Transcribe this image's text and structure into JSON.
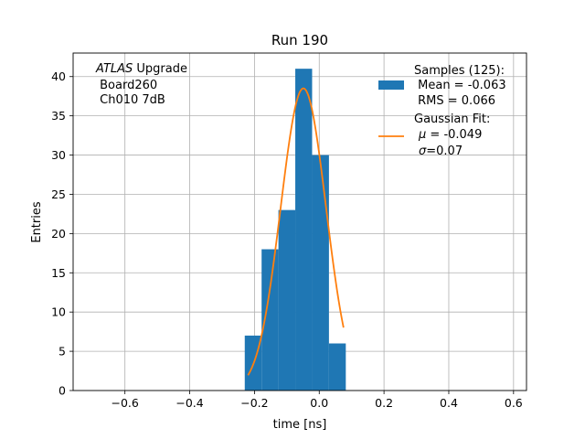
{
  "chart_data": {
    "type": "bar",
    "title": "Run 190",
    "xlabel": "time [ns]",
    "ylabel": "Entries",
    "xlim": [
      -0.76,
      0.64
    ],
    "ylim": [
      0,
      43
    ],
    "xticks": [
      -0.6,
      -0.4,
      -0.2,
      0.0,
      0.2,
      0.4,
      0.6
    ],
    "xtick_labels": [
      "−0.6",
      "−0.4",
      "−0.2",
      "0.0",
      "0.2",
      "0.4",
      "0.6"
    ],
    "yticks": [
      0,
      5,
      10,
      15,
      20,
      25,
      30,
      35,
      40
    ],
    "ytick_labels": [
      "0",
      "5",
      "10",
      "15",
      "20",
      "25",
      "30",
      "35",
      "40"
    ],
    "grid": true,
    "histogram": {
      "bin_edges": [
        -0.23,
        -0.178,
        -0.126,
        -0.074,
        -0.022,
        0.03,
        0.082
      ],
      "counts": [
        7,
        18,
        23,
        41,
        30,
        6
      ],
      "color": "#1f77b4"
    },
    "gaussian_fit": {
      "mu": -0.049,
      "sigma": 0.07,
      "amplitude": 38.5,
      "x_range": [
        -0.22,
        0.075
      ],
      "color": "#ff7f0e"
    },
    "annotation": {
      "atlas_italic": "ATLAS",
      "atlas_suffix": " Upgrade",
      "line2": " Board260",
      "line3": " Ch010 7dB"
    },
    "legend": {
      "position": "top-right",
      "hist_label_lines": [
        "Samples (125):",
        " Mean = -0.063",
        " RMS = 0.066"
      ],
      "fit_label_lines": [
        "Gaussian Fit:",
        "$\\mu$ = -0.049",
        "$\\sigma$=0.07"
      ],
      "fit_mu_value": " = -0.049",
      "fit_sigma_value": "=0.07"
    }
  }
}
